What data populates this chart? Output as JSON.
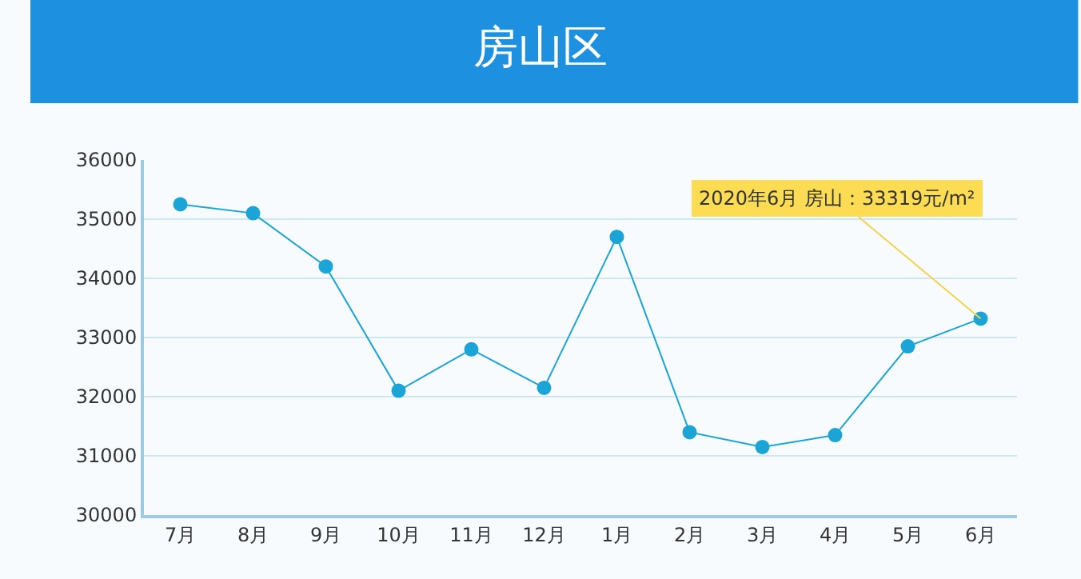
{
  "chart_data": {
    "type": "line",
    "title": "房山区",
    "categories": [
      "7月",
      "8月",
      "9月",
      "10月",
      "11月",
      "12月",
      "1月",
      "2月",
      "3月",
      "4月",
      "5月",
      "6月"
    ],
    "series": [
      {
        "color": "#1ba4d6",
        "values": [
          35250,
          35100,
          34200,
          32100,
          32800,
          32150,
          34700,
          31400,
          31150,
          31350,
          32850,
          33319
        ]
      }
    ],
    "ylim": [
      30000,
      36000
    ],
    "yticks": [
      30000,
      31000,
      32000,
      33000,
      34000,
      35000,
      36000
    ],
    "grid": "y",
    "marker": "circle",
    "line_style": "solid",
    "legend": false,
    "annotations": [
      {
        "text": "2020年6月 房山：33319元/m²",
        "x": "6月",
        "y": 33319
      }
    ]
  }
}
